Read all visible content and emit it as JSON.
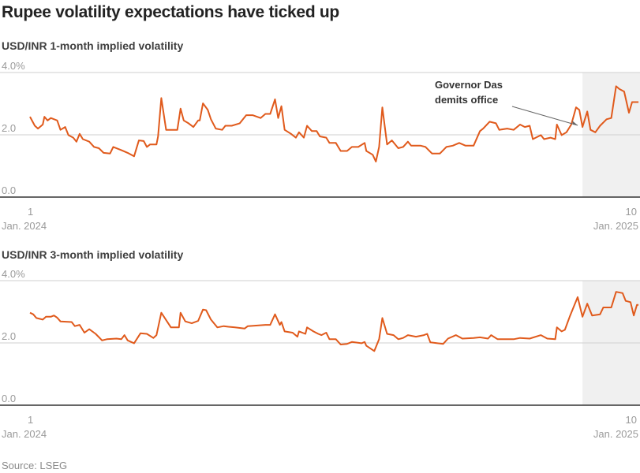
{
  "title": "Rupee volatility expectations have ticked up",
  "source": "Source: LSEG",
  "colors": {
    "line": "#e05a1c",
    "shade": "#f0f0f0",
    "grid": "#cfcfcf",
    "baseline": "#333333"
  },
  "chart_data": [
    {
      "type": "line",
      "title": "USD/INR 1-month implied volatility",
      "ylim": [
        0,
        4
      ],
      "yticks": [
        "0.0",
        "2.0",
        "4.0%"
      ],
      "ytick_values": [
        0,
        2,
        4
      ],
      "xlim": [
        "2024-01-01",
        "2025-01-10"
      ],
      "xticks": [
        {
          "day": "1",
          "month": "Jan. 2024",
          "date": "2024-01-01"
        },
        {
          "day": "10",
          "month": "Jan. 2025",
          "date": "2025-01-10"
        }
      ],
      "grid": true,
      "shaded_from": "2024-12-11",
      "annotation": {
        "lines": [
          "Governor Das",
          "demits office"
        ],
        "date": "2024-12-10"
      },
      "series": [
        {
          "x": [
            "2024-01-01",
            "2024-01-04",
            "2024-01-06",
            "2024-01-09",
            "2024-01-10",
            "2024-01-12",
            "2024-01-14",
            "2024-01-18",
            "2024-01-20",
            "2024-01-23",
            "2024-01-25",
            "2024-01-28",
            "2024-01-30",
            "2024-02-01",
            "2024-02-03",
            "2024-02-07",
            "2024-02-10",
            "2024-02-13",
            "2024-02-16",
            "2024-02-20",
            "2024-02-22",
            "2024-02-27",
            "2024-03-02",
            "2024-03-06",
            "2024-03-09",
            "2024-03-12",
            "2024-03-14",
            "2024-03-16",
            "2024-03-20",
            "2024-03-21",
            "2024-03-23",
            "2024-03-26",
            "2024-04-02",
            "2024-04-04",
            "2024-04-06",
            "2024-04-09",
            "2024-04-12",
            "2024-04-15",
            "2024-04-16",
            "2024-04-18",
            "2024-04-21",
            "2024-04-23",
            "2024-04-26",
            "2024-04-30",
            "2024-05-02",
            "2024-05-06",
            "2024-05-11",
            "2024-05-15",
            "2024-05-19",
            "2024-05-24",
            "2024-05-27",
            "2024-05-30",
            "2024-06-02",
            "2024-06-04",
            "2024-06-06",
            "2024-06-08",
            "2024-06-12",
            "2024-06-15",
            "2024-06-17",
            "2024-06-20",
            "2024-06-22",
            "2024-06-25",
            "2024-06-28",
            "2024-06-30",
            "2024-07-04",
            "2024-07-06",
            "2024-07-10",
            "2024-07-13",
            "2024-07-17",
            "2024-07-20",
            "2024-07-24",
            "2024-07-28",
            "2024-07-29",
            "2024-08-02",
            "2024-08-04",
            "2024-08-06",
            "2024-08-08",
            "2024-08-11",
            "2024-08-14",
            "2024-08-18",
            "2024-08-21",
            "2024-08-24",
            "2024-08-26",
            "2024-09-01",
            "2024-09-04",
            "2024-09-08",
            "2024-09-13",
            "2024-09-17",
            "2024-09-21",
            "2024-09-25",
            "2024-09-29",
            "2024-10-04",
            "2024-10-08",
            "2024-10-10",
            "2024-10-14",
            "2024-10-18",
            "2024-10-20",
            "2024-10-25",
            "2024-10-29",
            "2024-11-02",
            "2024-11-05",
            "2024-11-08",
            "2024-11-10",
            "2024-11-15",
            "2024-11-17",
            "2024-11-21",
            "2024-11-24",
            "2024-11-25",
            "2024-11-28",
            "2024-12-01",
            "2024-12-04",
            "2024-12-07",
            "2024-12-09",
            "2024-12-11",
            "2024-12-14",
            "2024-12-16",
            "2024-12-19",
            "2024-12-22",
            "2024-12-26",
            "2024-12-29",
            "2025-01-01",
            "2025-01-03",
            "2025-01-06",
            "2025-01-09",
            "2025-01-11",
            "2025-01-15"
          ],
          "y": [
            2.58,
            2.29,
            2.2,
            2.33,
            2.58,
            2.46,
            2.54,
            2.46,
            2.16,
            2.25,
            1.99,
            1.91,
            1.78,
            2.03,
            1.86,
            1.78,
            1.61,
            1.57,
            1.42,
            1.4,
            1.61,
            1.51,
            1.42,
            1.31,
            1.82,
            1.8,
            1.61,
            1.69,
            1.69,
            1.95,
            3.18,
            2.16,
            2.16,
            2.84,
            2.46,
            2.37,
            2.25,
            2.46,
            2.46,
            3.01,
            2.8,
            2.5,
            2.2,
            2.16,
            2.29,
            2.29,
            2.37,
            2.63,
            2.63,
            2.54,
            2.67,
            2.67,
            3.14,
            2.54,
            2.92,
            2.16,
            2.03,
            1.91,
            2.08,
            1.91,
            2.29,
            2.12,
            2.12,
            1.95,
            1.91,
            1.74,
            1.74,
            1.48,
            1.48,
            1.61,
            1.61,
            1.74,
            1.48,
            1.36,
            1.14,
            1.61,
            2.88,
            1.69,
            1.82,
            1.57,
            1.61,
            1.78,
            1.65,
            1.65,
            1.61,
            1.4,
            1.4,
            1.61,
            1.65,
            1.74,
            1.65,
            1.65,
            2.12,
            2.2,
            2.42,
            2.37,
            2.16,
            2.2,
            2.16,
            2.33,
            2.25,
            2.29,
            1.86,
            1.99,
            1.86,
            1.91,
            1.86,
            2.33,
            1.99,
            2.08,
            2.33,
            2.88,
            2.8,
            2.25,
            2.75,
            2.16,
            2.08,
            2.29,
            2.5,
            2.54,
            3.56,
            3.47,
            3.39,
            2.71,
            3.05,
            3.05
          ]
        }
      ]
    },
    {
      "type": "line",
      "title": "USD/INR 3-month implied volatility",
      "ylim": [
        0,
        4
      ],
      "yticks": [
        "0.0",
        "2.0",
        "4.0%"
      ],
      "ytick_values": [
        0,
        2,
        4
      ],
      "xlim": [
        "2024-01-01",
        "2025-01-10"
      ],
      "xticks": [
        {
          "day": "1",
          "month": "Jan. 2024",
          "date": "2024-01-01"
        },
        {
          "day": "10",
          "month": "Jan. 2025",
          "date": "2025-01-10"
        }
      ],
      "grid": true,
      "shaded_from": "2024-12-11",
      "series": [
        {
          "x": [
            "2024-01-01",
            "2024-01-03",
            "2024-01-05",
            "2024-01-09",
            "2024-01-11",
            "2024-01-14",
            "2024-01-16",
            "2024-01-18",
            "2024-01-20",
            "2024-01-27",
            "2024-01-29",
            "2024-02-01",
            "2024-02-04",
            "2024-02-07",
            "2024-02-11",
            "2024-02-15",
            "2024-02-18",
            "2024-02-24",
            "2024-02-27",
            "2024-02-29",
            "2024-03-02",
            "2024-03-06",
            "2024-03-10",
            "2024-03-14",
            "2024-03-18",
            "2024-03-20",
            "2024-03-23",
            "2024-03-29",
            "2024-04-03",
            "2024-04-04",
            "2024-04-07",
            "2024-04-11",
            "2024-04-15",
            "2024-04-18",
            "2024-04-20",
            "2024-04-23",
            "2024-04-27",
            "2024-05-01",
            "2024-05-04",
            "2024-05-08",
            "2024-05-14",
            "2024-05-16",
            "2024-05-22",
            "2024-05-27",
            "2024-05-30",
            "2024-06-02",
            "2024-06-05",
            "2024-06-06",
            "2024-06-08",
            "2024-06-13",
            "2024-06-16",
            "2024-06-17",
            "2024-06-21",
            "2024-06-22",
            "2024-06-26",
            "2024-06-29",
            "2024-07-01",
            "2024-07-04",
            "2024-07-06",
            "2024-07-10",
            "2024-07-13",
            "2024-07-17",
            "2024-07-20",
            "2024-07-26",
            "2024-07-28",
            "2024-07-29",
            "2024-08-03",
            "2024-08-06",
            "2024-08-08",
            "2024-08-11",
            "2024-08-15",
            "2024-08-18",
            "2024-08-21",
            "2024-08-24",
            "2024-08-29",
            "2024-09-03",
            "2024-09-05",
            "2024-09-07",
            "2024-09-15",
            "2024-09-18",
            "2024-09-23",
            "2024-09-27",
            "2024-10-04",
            "2024-10-08",
            "2024-10-13",
            "2024-10-15",
            "2024-10-19",
            "2024-10-29",
            "2024-11-02",
            "2024-11-08",
            "2024-11-15",
            "2024-11-19",
            "2024-11-24",
            "2024-11-25",
            "2024-11-28",
            "2024-11-30",
            "2024-12-03",
            "2024-12-05",
            "2024-12-08",
            "2024-12-11",
            "2024-12-14",
            "2024-12-17",
            "2024-12-22",
            "2024-12-24",
            "2024-12-29",
            "2025-01-01",
            "2025-01-05",
            "2025-01-07",
            "2025-01-10",
            "2025-01-12",
            "2025-01-14",
            "2025-01-15"
          ],
          "y": [
            2.97,
            2.92,
            2.8,
            2.75,
            2.84,
            2.84,
            2.88,
            2.81,
            2.69,
            2.67,
            2.54,
            2.58,
            2.33,
            2.44,
            2.29,
            2.08,
            2.12,
            2.14,
            2.12,
            2.25,
            2.08,
            1.99,
            2.31,
            2.29,
            2.16,
            2.25,
            2.97,
            2.5,
            2.5,
            2.97,
            2.69,
            2.63,
            2.71,
            3.07,
            3.05,
            2.75,
            2.5,
            2.54,
            2.52,
            2.5,
            2.46,
            2.54,
            2.56,
            2.58,
            2.58,
            2.92,
            2.58,
            2.67,
            2.37,
            2.33,
            2.2,
            2.37,
            2.29,
            2.5,
            2.37,
            2.29,
            2.25,
            2.33,
            2.12,
            2.12,
            1.95,
            1.97,
            2.03,
            1.99,
            2.03,
            1.91,
            1.74,
            2.12,
            2.8,
            2.29,
            2.25,
            2.12,
            2.16,
            2.25,
            2.2,
            2.25,
            2.29,
            2.02,
            1.97,
            2.14,
            2.25,
            2.14,
            2.16,
            2.18,
            2.14,
            2.25,
            2.12,
            2.12,
            2.16,
            2.14,
            2.25,
            2.14,
            2.12,
            2.5,
            2.37,
            2.42,
            2.84,
            3.09,
            3.47,
            2.84,
            3.26,
            2.88,
            2.92,
            3.14,
            3.14,
            3.64,
            3.6,
            3.35,
            3.31,
            2.88,
            3.22,
            3.22
          ]
        }
      ]
    }
  ]
}
